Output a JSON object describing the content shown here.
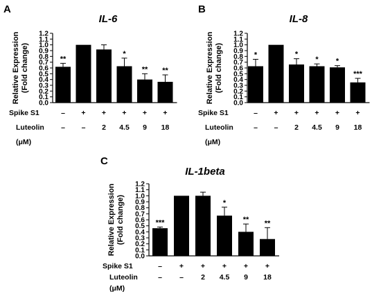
{
  "chart_data": [
    {
      "type": "bar",
      "panel_label": "A",
      "title": "IL-6",
      "ylabel_lines": [
        "Relative Expression",
        "(Fold change)"
      ],
      "ylim": [
        0,
        1.2
      ],
      "yticks": [
        "0.0",
        "0.1",
        "0.2",
        "0.3",
        "0.4",
        "0.5",
        "0.6",
        "0.7",
        "0.8",
        "0.9",
        "1.0",
        "1.1",
        "1.2"
      ],
      "conditions": {
        "spike_label": "Spike S1",
        "luteolin_label": "Luteolin",
        "unit_label": "(μM)",
        "spike": [
          "–",
          "+",
          "+",
          "+",
          "+",
          "+"
        ],
        "luteolin": [
          "–",
          "–",
          "2",
          "4.5",
          "9",
          "18"
        ]
      },
      "values": [
        0.62,
        1.0,
        0.92,
        0.63,
        0.4,
        0.36
      ],
      "errors": [
        0.06,
        0.0,
        0.08,
        0.14,
        0.1,
        0.12
      ],
      "significance": [
        "**",
        "",
        "",
        "*",
        "**",
        "**"
      ]
    },
    {
      "type": "bar",
      "panel_label": "B",
      "title": "IL-8",
      "ylabel_lines": [
        "Relative Expression",
        "(Fold change)"
      ],
      "ylim": [
        0,
        1.2
      ],
      "yticks": [
        "0.0",
        "0.1",
        "0.2",
        "0.3",
        "0.4",
        "0.5",
        "0.6",
        "0.7",
        "0.8",
        "0.9",
        "1.0",
        "1.1",
        "1.2"
      ],
      "conditions": {
        "spike_label": "Spike S1",
        "luteolin_label": "Luteolin",
        "unit_label": "(μM)",
        "spike": [
          "–",
          "+",
          "+",
          "+",
          "+",
          "+"
        ],
        "luteolin": [
          "–",
          "–",
          "2",
          "4.5",
          "9",
          "18"
        ]
      },
      "values": [
        0.63,
        1.0,
        0.66,
        0.63,
        0.61,
        0.35
      ],
      "errors": [
        0.12,
        0.0,
        0.1,
        0.04,
        0.03,
        0.07
      ],
      "significance": [
        "*",
        "",
        "*",
        "*",
        "*",
        "***"
      ]
    },
    {
      "type": "bar",
      "panel_label": "C",
      "title": "IL-1beta",
      "ylabel_lines": [
        "Relative Expression",
        "(Fold change)"
      ],
      "ylim": [
        0,
        1.2
      ],
      "yticks": [
        "0.0",
        "0.1",
        "0.2",
        "0.3",
        "0.4",
        "0.5",
        "0.6",
        "0.7",
        "0.8",
        "0.9",
        "1.0",
        "1.1",
        "1.2"
      ],
      "conditions": {
        "spike_label": "Spike S1",
        "luteolin_label": "Luteolin",
        "unit_label": "(μM)",
        "spike": [
          "–",
          "+",
          "+",
          "+",
          "+",
          "+"
        ],
        "luteolin": [
          "–",
          "–",
          "2",
          "4.5",
          "9",
          "18"
        ]
      },
      "values": [
        0.46,
        1.0,
        1.0,
        0.67,
        0.4,
        0.28
      ],
      "errors": [
        0.02,
        0.0,
        0.06,
        0.14,
        0.13,
        0.19
      ],
      "significance": [
        "***",
        "",
        "",
        "*",
        "**",
        "**"
      ]
    }
  ],
  "colors": {
    "bar": "#000000",
    "axis": "#000000",
    "background": "#ffffff"
  }
}
